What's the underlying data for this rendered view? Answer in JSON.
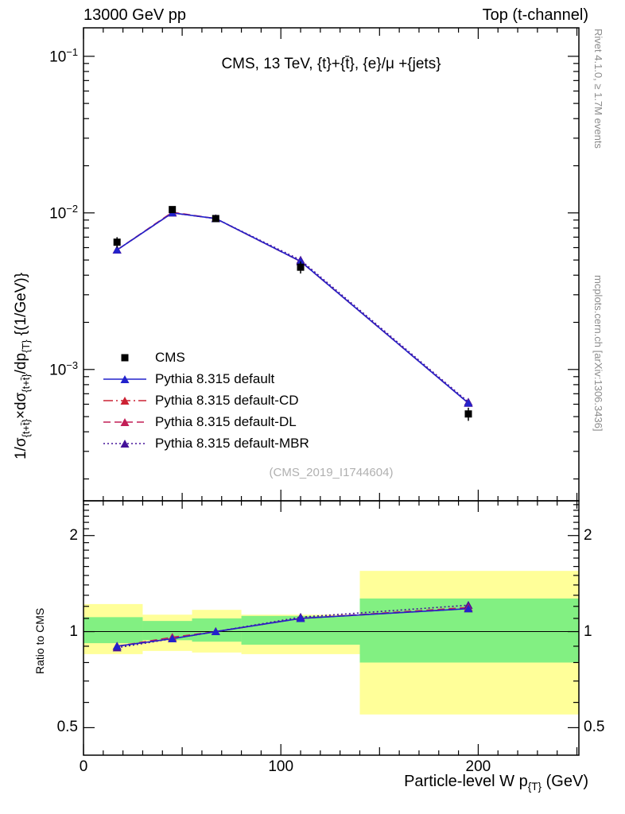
{
  "header": {
    "left": "13000 GeV pp",
    "right": "Top (t-channel)"
  },
  "main_panel": {
    "title": "CMS, 13 TeV, {t}+{t̄}, {e}/μ +{jets}",
    "ylabel_parts": [
      "1/σ",
      "{t+t̄}",
      "×dσ",
      "{t+t̄}",
      "/dp",
      "{T}",
      "  {(1/GeV)}"
    ],
    "watermark": "(CMS_2019_I1744604)"
  },
  "ratio_panel": {
    "ylabel": "Ratio to CMS"
  },
  "xaxis": {
    "label_parts": [
      "Particle-level W p",
      "{T}",
      " (GeV)"
    ]
  },
  "side_notes": {
    "rivet": "Rivet 4.1.0, ≥ 1.7M events",
    "mcplots": "mcplots.cern.ch [arXiv:1306.3436]"
  },
  "legend": {
    "entries": [
      {
        "label": "CMS",
        "marker": "square",
        "color": "#000000",
        "line": "none"
      },
      {
        "label": "Pythia 8.315 default",
        "marker": "triangle",
        "color": "#2222cc",
        "line": "solid"
      },
      {
        "label": "Pythia 8.315 default-CD",
        "marker": "triangle",
        "color": "#cc2233",
        "line": "dashdot"
      },
      {
        "label": "Pythia 8.315 default-DL",
        "marker": "triangle",
        "color": "#c21e56",
        "line": "dashed"
      },
      {
        "label": "Pythia 8.315 default-MBR",
        "marker": "triangle",
        "color": "#441199",
        "line": "dotted"
      }
    ]
  },
  "chart_data": {
    "type": "line",
    "title": "CMS, 13 TeV, {t}+{t̄}, {e}/μ +{jets}",
    "xlabel": "Particle-level W p_{T} (GeV)",
    "ylabel": "1/σ_{t+t̄}×dσ_{t+t̄}/dp_{T} {(1/GeV)}",
    "x_range": [
      0,
      251
    ],
    "x_ticks": [
      0,
      100,
      200
    ],
    "band_colors": {
      "yellow": "#ffff99",
      "green": "#82f082"
    },
    "main": {
      "yscale": "log",
      "ylim": [
        0.000145,
        0.152
      ],
      "ytick_exponents": [
        -1,
        -2,
        -3
      ],
      "cms": {
        "x": [
          17,
          45,
          67,
          110,
          195
        ],
        "y": [
          0.0065,
          0.0105,
          0.0092,
          0.0045,
          0.00052
        ],
        "yerr": [
          0.0005,
          0.0004,
          0.0004,
          0.0004,
          5e-05
        ]
      },
      "series": [
        {
          "name": "Pythia 8.315 default",
          "color": "#2222cc",
          "line": "solid",
          "y": [
            0.0058,
            0.01,
            0.0092,
            0.0049,
            0.00061
          ]
        },
        {
          "name": "Pythia 8.315 default-CD",
          "color": "#cc2233",
          "line": "dashdot",
          "y": [
            0.0058,
            0.01,
            0.0092,
            0.0049,
            0.00061
          ]
        },
        {
          "name": "Pythia 8.315 default-DL",
          "color": "#c21e56",
          "line": "dashed",
          "y": [
            0.0058,
            0.0101,
            0.0092,
            0.0049,
            0.00061
          ]
        },
        {
          "name": "Pythia 8.315 default-MBR",
          "color": "#441199",
          "line": "dotted",
          "y": [
            0.0058,
            0.01,
            0.0092,
            0.005,
            0.00062
          ]
        }
      ]
    },
    "ratio": {
      "yscale": "log",
      "ylim": [
        0.41,
        2.57
      ],
      "yticks": [
        0.5,
        1,
        2
      ],
      "bins": [
        [
          0,
          30
        ],
        [
          30,
          55
        ],
        [
          55,
          80
        ],
        [
          80,
          140
        ],
        [
          140,
          251
        ]
      ],
      "yellow_band": [
        [
          0.85,
          1.22
        ],
        [
          0.87,
          1.13
        ],
        [
          0.86,
          1.17
        ],
        [
          0.85,
          1.13
        ],
        [
          0.55,
          1.55
        ]
      ],
      "green_band": [
        [
          0.92,
          1.11
        ],
        [
          0.94,
          1.08
        ],
        [
          0.93,
          1.1
        ],
        [
          0.91,
          1.12
        ],
        [
          0.8,
          1.27
        ]
      ],
      "series": [
        {
          "name": "Pythia 8.315 default",
          "values": [
            0.9,
            0.95,
            1.0,
            1.1,
            1.18
          ]
        },
        {
          "name": "Pythia 8.315 default-CD",
          "values": [
            0.9,
            0.95,
            1.0,
            1.1,
            1.18
          ]
        },
        {
          "name": "Pythia 8.315 default-DL",
          "values": [
            0.9,
            0.96,
            1.0,
            1.1,
            1.19
          ]
        },
        {
          "name": "Pythia 8.315 default-MBR",
          "values": [
            0.89,
            0.95,
            1.0,
            1.11,
            1.21
          ]
        }
      ]
    }
  }
}
